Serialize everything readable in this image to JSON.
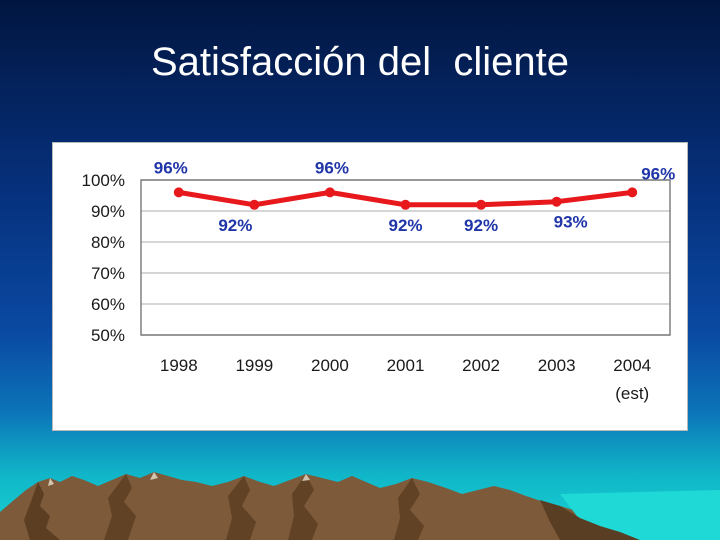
{
  "slide": {
    "title": "Satisfacción del  cliente"
  },
  "colors": {
    "line": "#e8191d",
    "data_label": "#1f35a8",
    "axis_text": "#1a1a1a",
    "gridline": "#c8c8c8",
    "plot_border": "#808080"
  },
  "chart_data": {
    "type": "line",
    "title": "",
    "xlabel": "",
    "ylabel": "",
    "categories": [
      "1998",
      "1999",
      "2000",
      "2001",
      "2002",
      "2003",
      "2004"
    ],
    "category_sublabels": [
      "",
      "",
      "",
      "",
      "",
      "",
      "(est)"
    ],
    "series": [
      {
        "values": [
          96,
          92,
          96,
          92,
          92,
          93,
          96
        ]
      }
    ],
    "data_labels": [
      "96%",
      "92%",
      "96%",
      "92%",
      "92%",
      "93%",
      "96%"
    ],
    "yticks": [
      "50%",
      "60%",
      "70%",
      "80%",
      "90%",
      "100%"
    ],
    "ytick_values": [
      50,
      60,
      70,
      80,
      90,
      100
    ],
    "ylim": [
      50,
      100
    ],
    "grid": true,
    "legend": "none"
  }
}
